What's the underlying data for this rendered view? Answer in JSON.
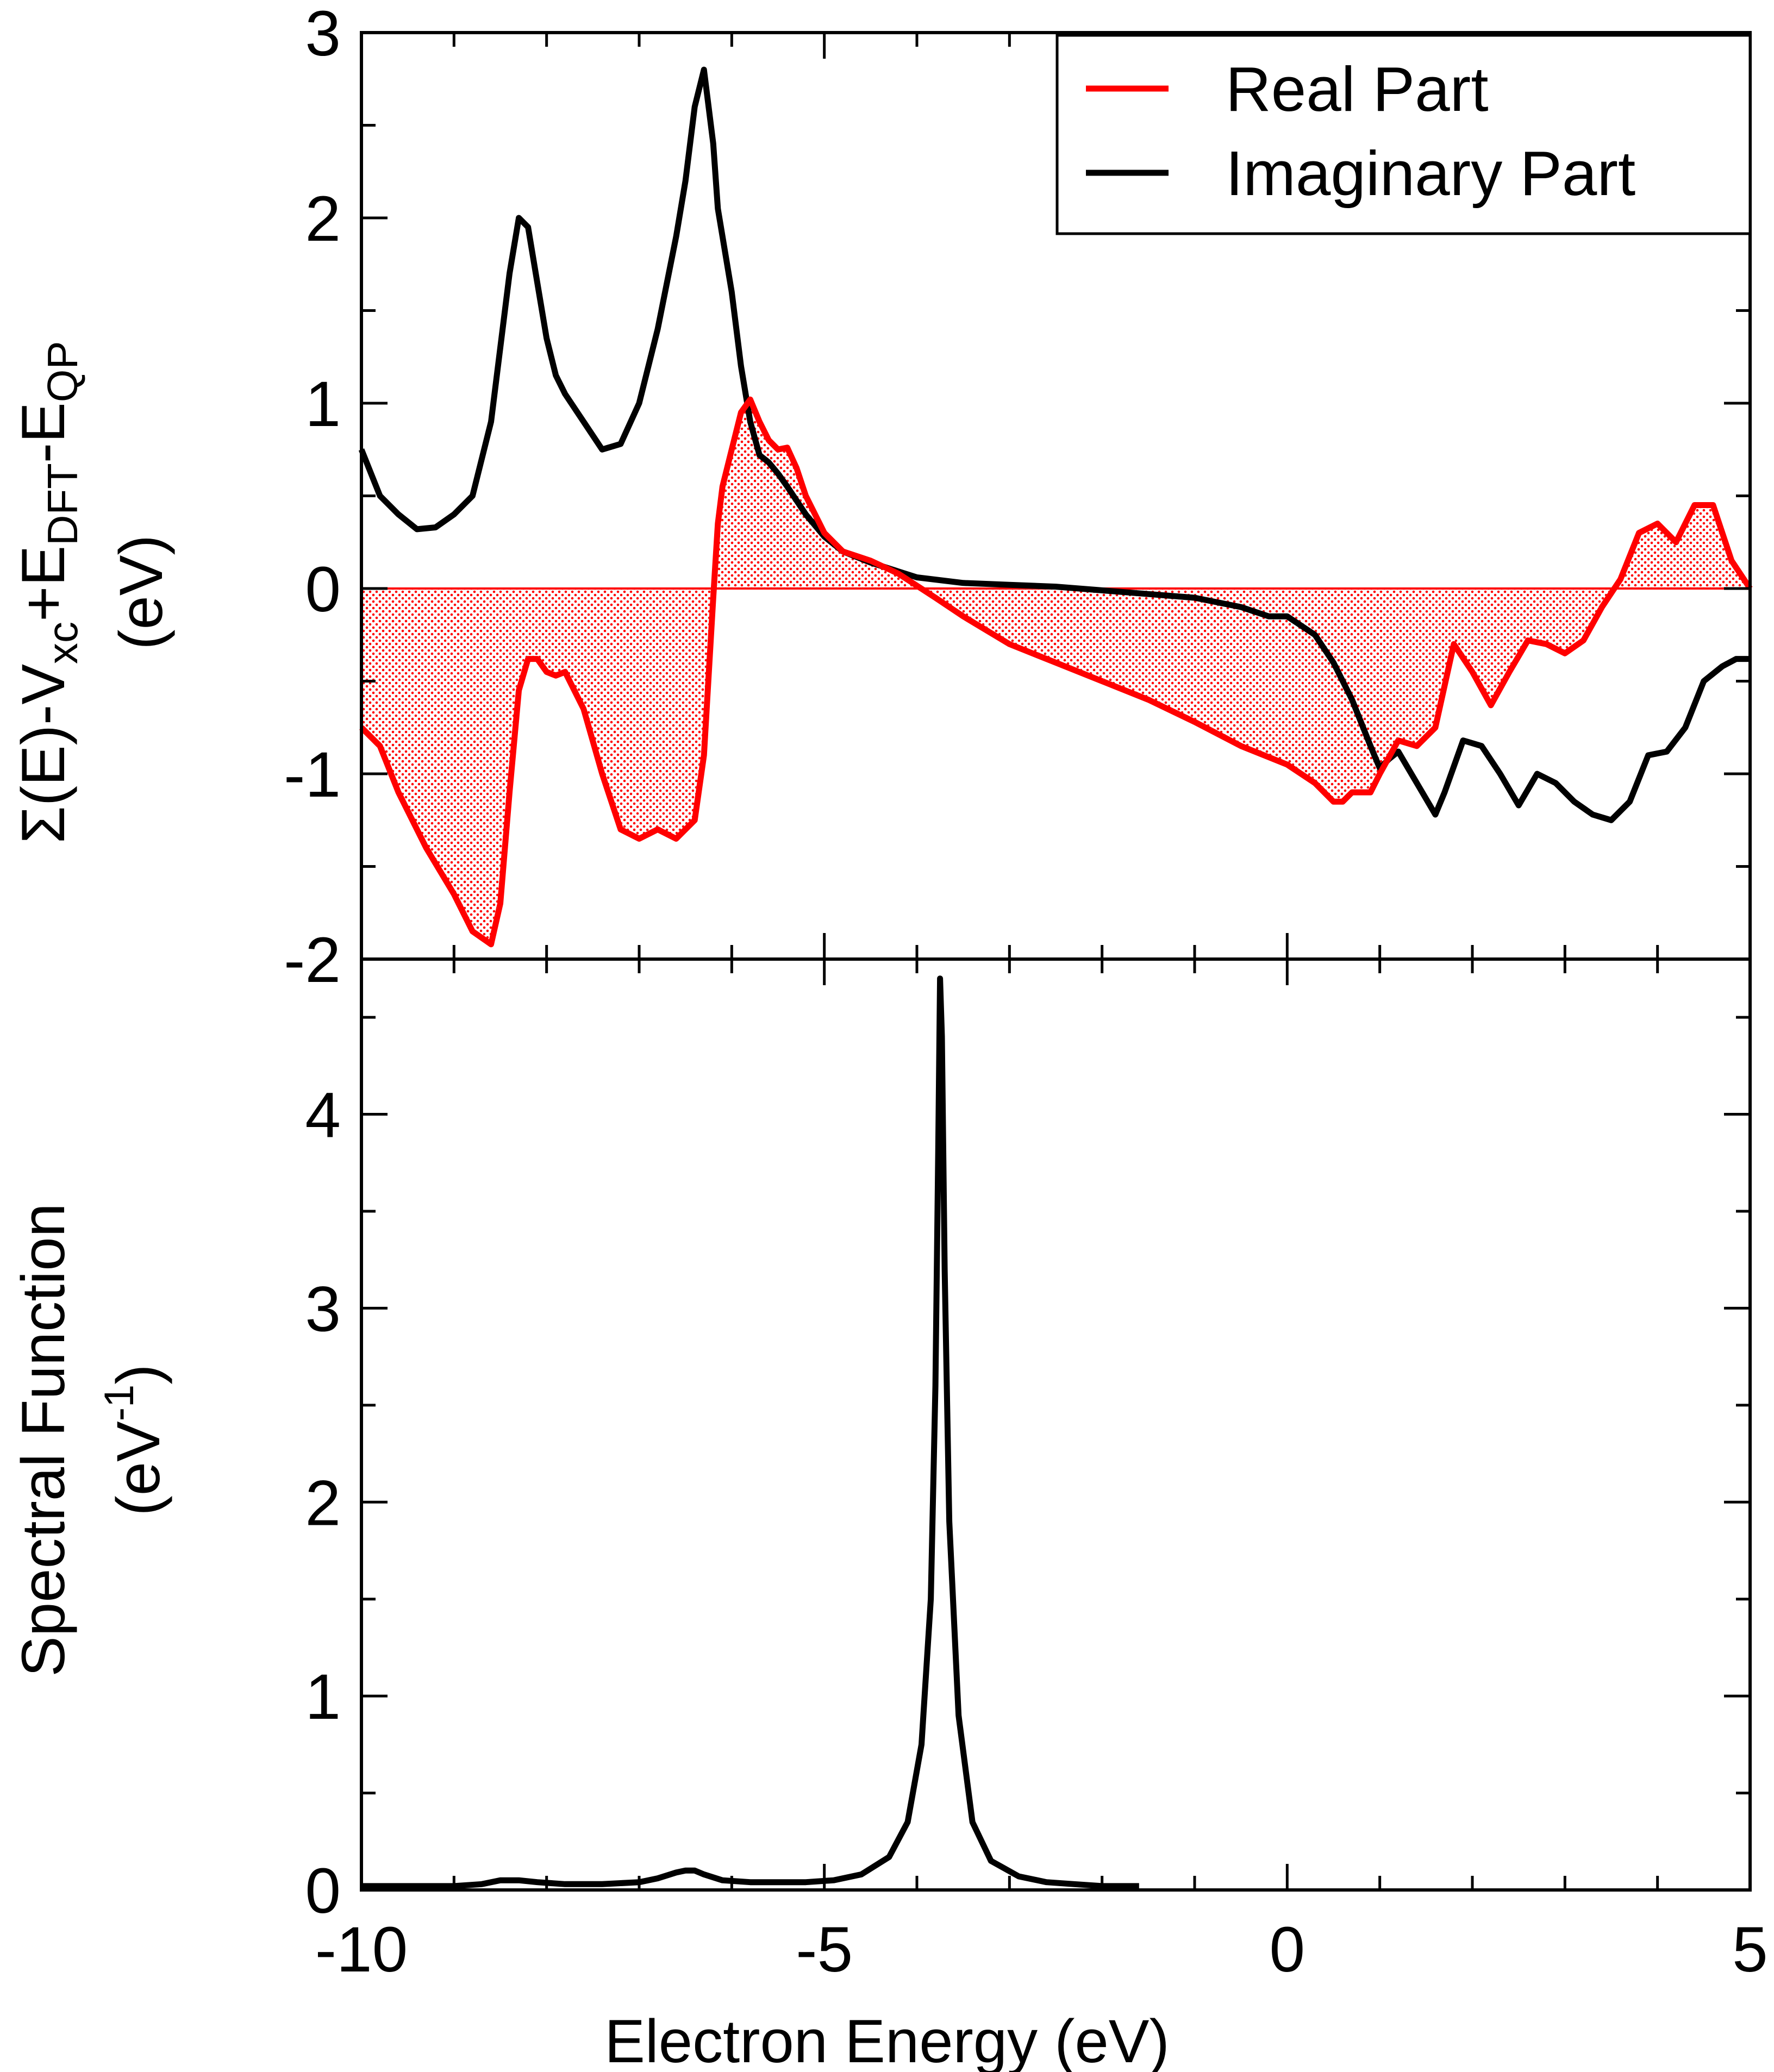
{
  "colors": {
    "real": "#ff0000",
    "imaginary": "#000000",
    "fill": "#ff0000",
    "frame": "#000000"
  },
  "legend": {
    "position": "top-right",
    "entries": [
      {
        "label": "Real Part",
        "color": "#ff0000"
      },
      {
        "label": "Imaginary Part",
        "color": "#000000"
      }
    ]
  },
  "xlabel": "Electron Energy (eV)",
  "top_ylabel": {
    "line1": {
      "sigma": "Σ",
      "e_open": "(E)-V",
      "xc": "xc",
      "plus_e": "+E",
      "dft": "DFT",
      "minus_e": "-E",
      "qp": "QP"
    },
    "line2": "(eV)"
  },
  "bottom_ylabel": {
    "line1": "Spectral Function",
    "line2_base": "(eV",
    "line2_sup": "-1",
    "line2_close": ")"
  },
  "chart_data": [
    {
      "type": "line",
      "panel": "top",
      "xlim": [
        -10,
        5
      ],
      "ylim": [
        -2,
        3
      ],
      "x_ticks": [
        -10,
        -5,
        0,
        5
      ],
      "x_tick_labels": [
        "-10",
        "-5",
        "0",
        "5"
      ],
      "y_ticks": [
        -2,
        -1,
        0,
        1,
        2,
        3
      ],
      "y_tick_labels": [
        "-2",
        "-1",
        "0",
        "1",
        "2",
        "3"
      ],
      "grid": false,
      "fill_between_real_and_zero": true,
      "series": [
        {
          "name": "Real Part",
          "color": "#ff0000",
          "x": [
            -10,
            -9.8,
            -9.6,
            -9.3,
            -9.0,
            -8.8,
            -8.6,
            -8.5,
            -8.4,
            -8.3,
            -8.2,
            -8.1,
            -8.0,
            -7.9,
            -7.8,
            -7.6,
            -7.4,
            -7.2,
            -7.0,
            -6.8,
            -6.6,
            -6.4,
            -6.3,
            -6.2,
            -6.15,
            -6.1,
            -6.0,
            -5.9,
            -5.8,
            -5.7,
            -5.6,
            -5.5,
            -5.4,
            -5.3,
            -5.2,
            -5.0,
            -4.8,
            -4.5,
            -4.2,
            -3.8,
            -3.5,
            -3.0,
            -2.5,
            -2.0,
            -1.5,
            -1.0,
            -0.5,
            0.0,
            0.3,
            0.5,
            0.6,
            0.7,
            0.8,
            0.9,
            1.0,
            1.2,
            1.4,
            1.6,
            1.8,
            2.0,
            2.2,
            2.4,
            2.6,
            2.8,
            3.0,
            3.2,
            3.4,
            3.6,
            3.8,
            4.0,
            4.2,
            4.4,
            4.6,
            4.8,
            5.0
          ],
          "y": [
            -0.75,
            -0.85,
            -1.1,
            -1.4,
            -1.65,
            -1.85,
            -1.92,
            -1.7,
            -1.1,
            -0.55,
            -0.38,
            -0.38,
            -0.45,
            -0.47,
            -0.45,
            -0.65,
            -1.0,
            -1.3,
            -1.35,
            -1.3,
            -1.35,
            -1.25,
            -0.9,
            -0.05,
            0.35,
            0.55,
            0.75,
            0.95,
            1.02,
            0.9,
            0.8,
            0.75,
            0.76,
            0.65,
            0.5,
            0.3,
            0.2,
            0.15,
            0.08,
            -0.05,
            -0.15,
            -0.3,
            -0.4,
            -0.5,
            -0.6,
            -0.72,
            -0.85,
            -0.95,
            -1.05,
            -1.15,
            -1.15,
            -1.1,
            -1.1,
            -1.1,
            -1.0,
            -0.82,
            -0.85,
            -0.75,
            -0.3,
            -0.45,
            -0.63,
            -0.45,
            -0.28,
            -0.3,
            -0.35,
            -0.28,
            -0.1,
            0.05,
            0.3,
            0.35,
            0.25,
            0.45,
            0.45,
            0.15,
            0.0
          ]
        },
        {
          "name": "Imaginary Part",
          "color": "#000000",
          "x": [
            -10,
            -9.8,
            -9.6,
            -9.4,
            -9.2,
            -9.0,
            -8.8,
            -8.6,
            -8.4,
            -8.3,
            -8.2,
            -8.1,
            -8.0,
            -7.9,
            -7.8,
            -7.6,
            -7.4,
            -7.2,
            -7.0,
            -6.8,
            -6.6,
            -6.5,
            -6.4,
            -6.3,
            -6.2,
            -6.15,
            -6.1,
            -6.0,
            -5.9,
            -5.8,
            -5.7,
            -5.6,
            -5.5,
            -5.4,
            -5.2,
            -5.0,
            -4.8,
            -4.5,
            -4.0,
            -3.5,
            -3.0,
            -2.5,
            -2.0,
            -1.5,
            -1.0,
            -0.5,
            -0.2,
            0.0,
            0.3,
            0.5,
            0.7,
            0.9,
            1.0,
            1.1,
            1.2,
            1.4,
            1.6,
            1.7,
            1.9,
            2.1,
            2.3,
            2.5,
            2.7,
            2.9,
            3.1,
            3.3,
            3.5,
            3.7,
            3.9,
            4.1,
            4.3,
            4.5,
            4.7,
            4.85,
            5.0
          ],
          "y": [
            0.75,
            0.5,
            0.4,
            0.32,
            0.33,
            0.4,
            0.5,
            0.9,
            1.7,
            2.0,
            1.95,
            1.65,
            1.35,
            1.15,
            1.05,
            0.9,
            0.75,
            0.78,
            1.0,
            1.4,
            1.9,
            2.2,
            2.6,
            2.8,
            2.4,
            2.05,
            1.9,
            1.6,
            1.2,
            0.9,
            0.72,
            0.68,
            0.62,
            0.55,
            0.4,
            0.28,
            0.2,
            0.14,
            0.06,
            0.03,
            0.02,
            0.01,
            -0.01,
            -0.03,
            -0.05,
            -0.1,
            -0.15,
            -0.15,
            -0.25,
            -0.4,
            -0.6,
            -0.85,
            -0.97,
            -0.92,
            -0.88,
            -1.05,
            -1.22,
            -1.1,
            -0.82,
            -0.85,
            -1.0,
            -1.17,
            -1.0,
            -1.05,
            -1.15,
            -1.22,
            -1.25,
            -1.15,
            -0.9,
            -0.88,
            -0.75,
            -0.5,
            -0.42,
            -0.38,
            -0.38
          ]
        }
      ]
    },
    {
      "type": "line",
      "panel": "bottom",
      "xlim": [
        -10,
        5
      ],
      "ylim": [
        0,
        4.8
      ],
      "x_ticks": [
        -10,
        -5,
        0,
        5
      ],
      "x_tick_labels": [
        "-10",
        "-5",
        "0",
        "5"
      ],
      "y_ticks": [
        0,
        1,
        2,
        3,
        4
      ],
      "y_tick_labels": [
        "0",
        "1",
        "2",
        "3",
        "4"
      ],
      "grid": false,
      "series": [
        {
          "color": "#000000",
          "x": [
            -10,
            -9.5,
            -9.0,
            -8.7,
            -8.5,
            -8.3,
            -8.1,
            -7.8,
            -7.4,
            -7.0,
            -6.8,
            -6.6,
            -6.5,
            -6.4,
            -6.3,
            -6.1,
            -5.8,
            -5.5,
            -5.2,
            -4.9,
            -4.6,
            -4.3,
            -4.1,
            -3.95,
            -3.85,
            -3.8,
            -3.77,
            -3.75,
            -3.73,
            -3.7,
            -3.65,
            -3.55,
            -3.4,
            -3.2,
            -2.9,
            -2.6,
            -2.3,
            -2.0,
            -1.6
          ],
          "y": [
            0.02,
            0.02,
            0.02,
            0.03,
            0.05,
            0.05,
            0.04,
            0.03,
            0.03,
            0.04,
            0.06,
            0.09,
            0.1,
            0.1,
            0.08,
            0.05,
            0.04,
            0.04,
            0.04,
            0.05,
            0.08,
            0.17,
            0.35,
            0.75,
            1.5,
            2.6,
            3.8,
            4.7,
            4.4,
            3.2,
            1.9,
            0.9,
            0.35,
            0.15,
            0.07,
            0.04,
            0.03,
            0.02,
            0.02
          ]
        }
      ]
    }
  ]
}
